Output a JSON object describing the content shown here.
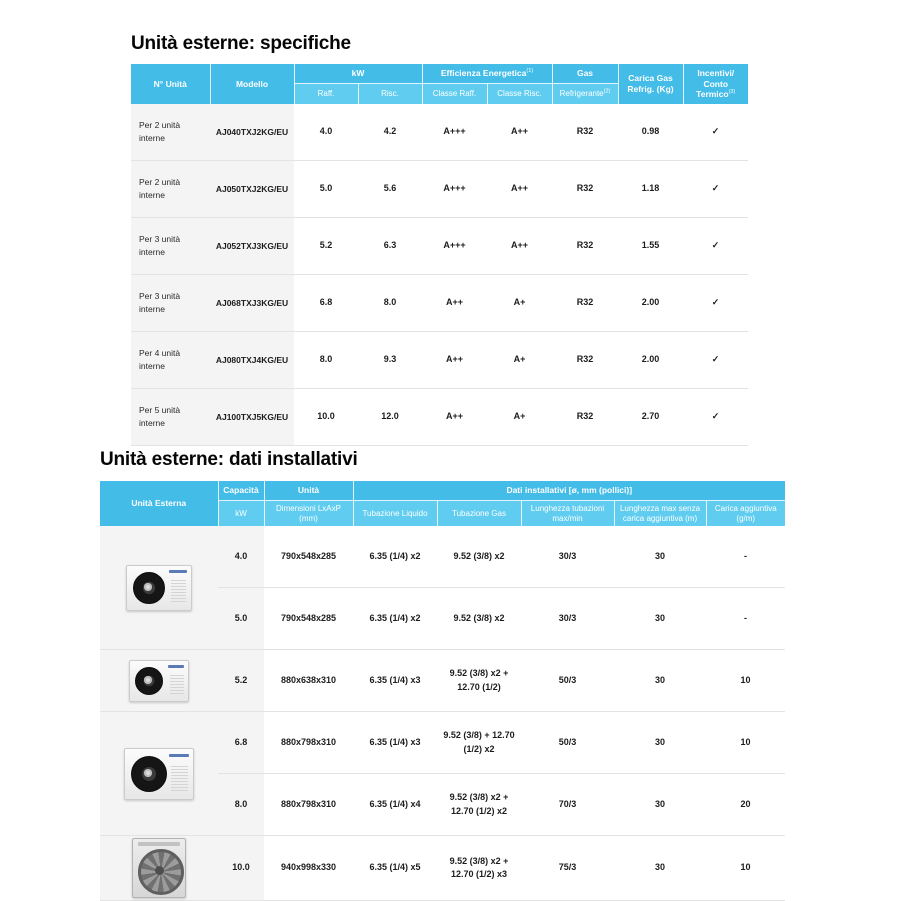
{
  "section1": {
    "title": "Unità esterne: specifiche"
  },
  "section2": {
    "title": "Unità esterne: dati installativi"
  },
  "spec_table": {
    "header": {
      "n_unita": "N° Unità",
      "modello": "Modello",
      "kw": "kW",
      "raff": "Raff.",
      "risc": "Risc.",
      "efficienza": "Efficienza Energetica",
      "efficienza_sup": "(1)",
      "classe_raff": "Classe Raff.",
      "classe_risc": "Classe Risc.",
      "gas": "Gas",
      "refrigerante": "Refrigerante",
      "refrigerante_sup": "(2)",
      "carica_line1": "Carica Gas",
      "carica_line2": "Refrig. (Kg)",
      "incentivi_line1": "Incentivi/",
      "incentivi_line2": "Conto Termico",
      "incentivi_sup": "(3)"
    },
    "rows": [
      [
        "Per 2 unità interne",
        "AJ040TXJ2KG/EU",
        "4.0",
        "4.2",
        "A+++",
        "A++",
        "R32",
        "0.98",
        "✓"
      ],
      [
        "Per 2 unità interne",
        "AJ050TXJ2KG/EU",
        "5.0",
        "5.6",
        "A+++",
        "A++",
        "R32",
        "1.18",
        "✓"
      ],
      [
        "Per 3 unità interne",
        "AJ052TXJ3KG/EU",
        "5.2",
        "6.3",
        "A+++",
        "A++",
        "R32",
        "1.55",
        "✓"
      ],
      [
        "Per 3 unità interne",
        "AJ068TXJ3KG/EU",
        "6.8",
        "8.0",
        "A++",
        "A+",
        "R32",
        "2.00",
        "✓"
      ],
      [
        "Per 4 unità interne",
        "AJ080TXJ4KG/EU",
        "8.0",
        "9.3",
        "A++",
        "A+",
        "R32",
        "2.00",
        "✓"
      ],
      [
        "Per 5 unità interne",
        "AJ100TXJ5KG/EU",
        "10.0",
        "12.0",
        "A++",
        "A+",
        "R32",
        "2.70",
        "✓"
      ]
    ],
    "check_mark": "✓"
  },
  "install_table": {
    "header": {
      "unita_esterna": "Unità Esterna",
      "capacita": "Capacità",
      "kw": "kW",
      "unita": "Unità",
      "dimensioni": "Dimensioni LxAxP (mm)",
      "dati": "Dati installativi [ø, mm (pollici)]",
      "tub_liquido": "Tubazione Liquido",
      "tub_gas": "Tubazione Gas",
      "lung_tub": "Lunghezza tubazioni max/min",
      "lung_max": "Lunghezza max senza carica aggiuntiva (m)",
      "carica_agg": "Carica aggiuntiva (g/m)"
    },
    "rows": [
      [
        "4.0",
        "790x548x285",
        "6.35 (1/4) x2",
        "9.52 (3/8) x2",
        "30/3",
        "30",
        "-"
      ],
      [
        "5.0",
        "790x548x285",
        "6.35 (1/4) x2",
        "9.52 (3/8) x2",
        "30/3",
        "30",
        "-"
      ],
      [
        "5.2",
        "880x638x310",
        "6.35 (1/4) x3",
        "9.52 (3/8) x2 + 12.70 (1/2)",
        "50/3",
        "30",
        "10"
      ],
      [
        "6.8",
        "880x798x310",
        "6.35 (1/4) x3",
        "9.52 (3/8) + 12.70 (1/2) x2",
        "50/3",
        "30",
        "10"
      ],
      [
        "8.0",
        "880x798x310",
        "6.35 (1/4) x4",
        "9.52 (3/8) x2 + 12.70 (1/2) x2",
        "70/3",
        "30",
        "20"
      ],
      [
        "10.0",
        "940x998x330",
        "6.35 (1/4) x5",
        "9.52 (3/8) x2 + 12.70 (1/2) x3",
        "75/3",
        "30",
        "10"
      ]
    ],
    "image_groups": [
      {
        "start": 0,
        "span": 2,
        "unit": "a",
        "name": "outdoor-unit-image-790"
      },
      {
        "start": 2,
        "span": 1,
        "unit": "b",
        "name": "outdoor-unit-image-880-638"
      },
      {
        "start": 3,
        "span": 2,
        "unit": "c",
        "name": "outdoor-unit-image-880-798"
      },
      {
        "start": 5,
        "span": 1,
        "unit": "d",
        "name": "outdoor-unit-image-940"
      }
    ]
  },
  "colors": {
    "header_group_blue": "#43bce8",
    "header_sub_blue": "#60cdf0",
    "row_divider": "#e3e3e3",
    "shaded_column": "#f4f4f4",
    "samsung_logo_blue": "#3d63ab"
  }
}
